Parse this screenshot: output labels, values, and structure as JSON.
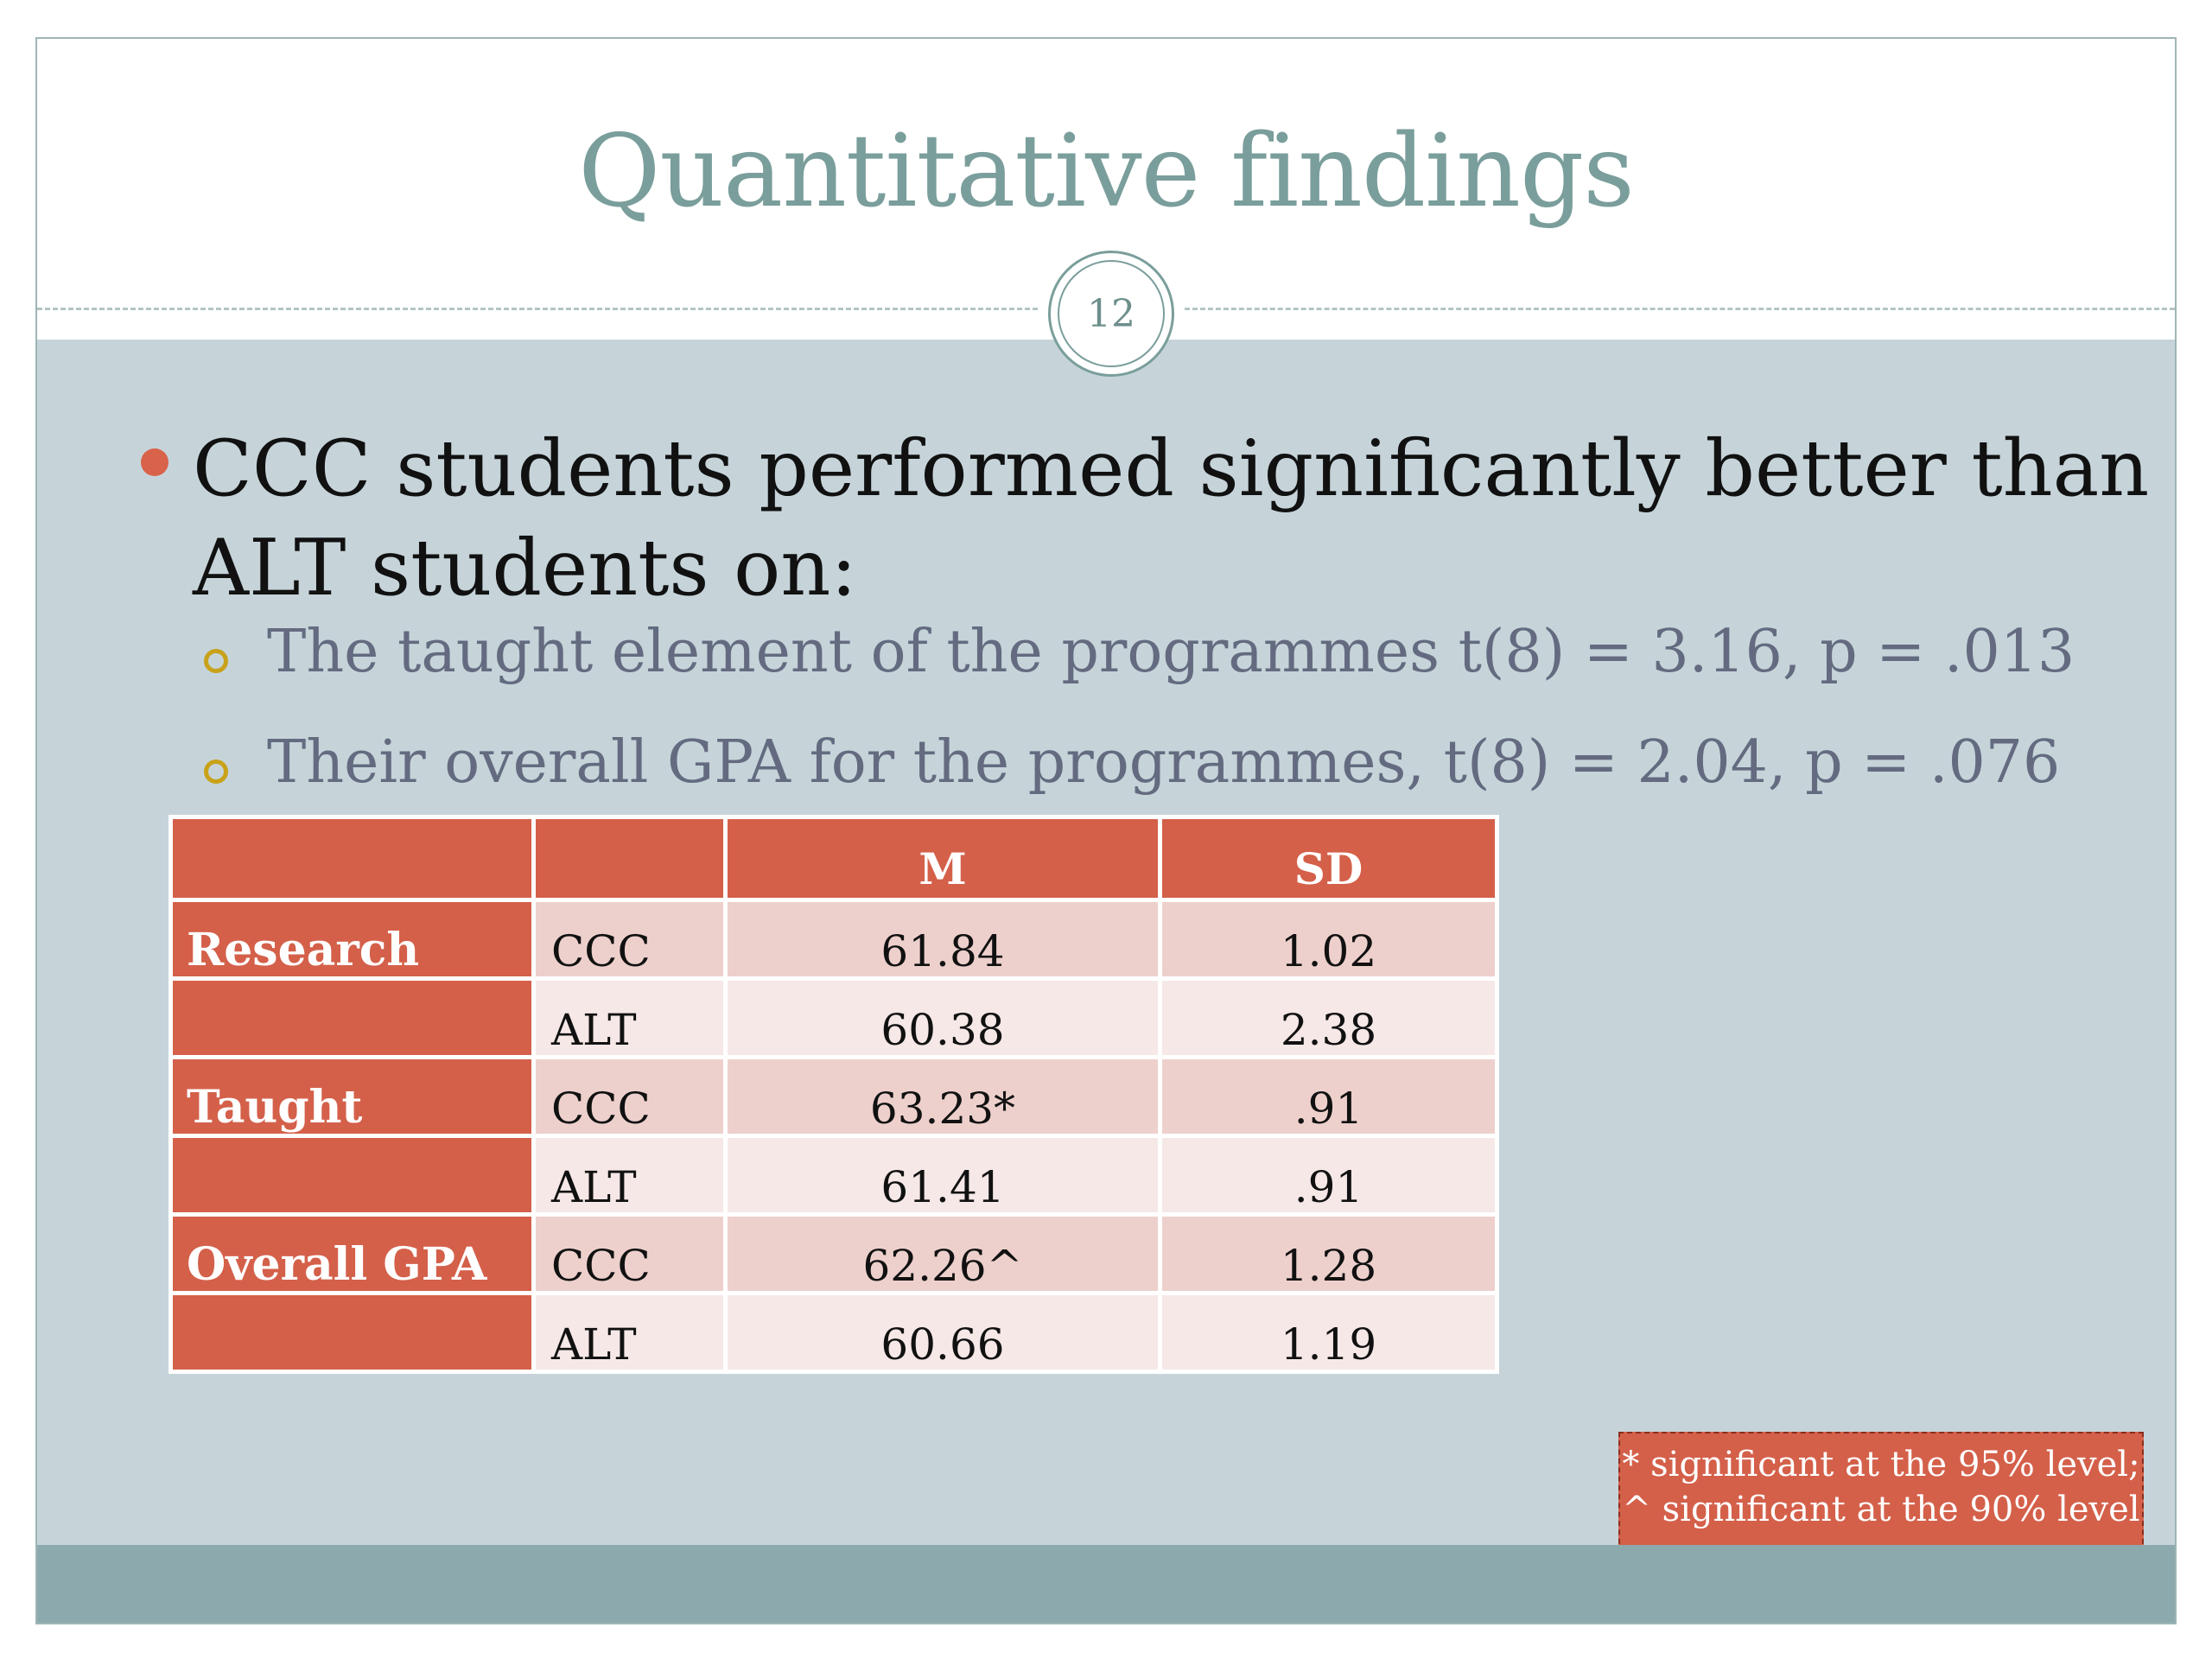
{
  "slide": {
    "title": "Quantitative findings",
    "page_number": "12",
    "main_bullet": "CCC students performed significantly better than ALT students on:",
    "sub_bullets": [
      "The taught element of the programmes t(8) = 3.16, p = .013",
      "Their overall GPA for the programmes, t(8) = 2.04, p = .076"
    ],
    "table": {
      "headers": [
        "",
        "",
        "M",
        "SD"
      ],
      "rows": [
        {
          "label": "Research",
          "group": "CCC",
          "m": "61.84",
          "sd": "1.02"
        },
        {
          "label": "",
          "group": "ALT",
          "m": "60.38",
          "sd": "2.38"
        },
        {
          "label": "Taught",
          "group": "CCC",
          "m": "63.23*",
          "sd": ".91"
        },
        {
          "label": "",
          "group": "ALT",
          "m": "61.41",
          "sd": ".91"
        },
        {
          "label": "Overall GPA",
          "group": "CCC",
          "m": "62.26^",
          "sd": "1.28"
        },
        {
          "label": "",
          "group": "ALT",
          "m": "60.66",
          "sd": "1.19"
        }
      ]
    },
    "note": {
      "line1": "* significant at the 95% level;",
      "line2": "^ significant at the 90% level"
    }
  },
  "colors": {
    "title": "#7a9e9b",
    "content_bg": "#c6d4da",
    "accent": "#d4604a",
    "bottom_bar": "#8caaad",
    "sub_bullet_text": "#646b80",
    "sub_bullet_marker": "#c8a21a"
  }
}
